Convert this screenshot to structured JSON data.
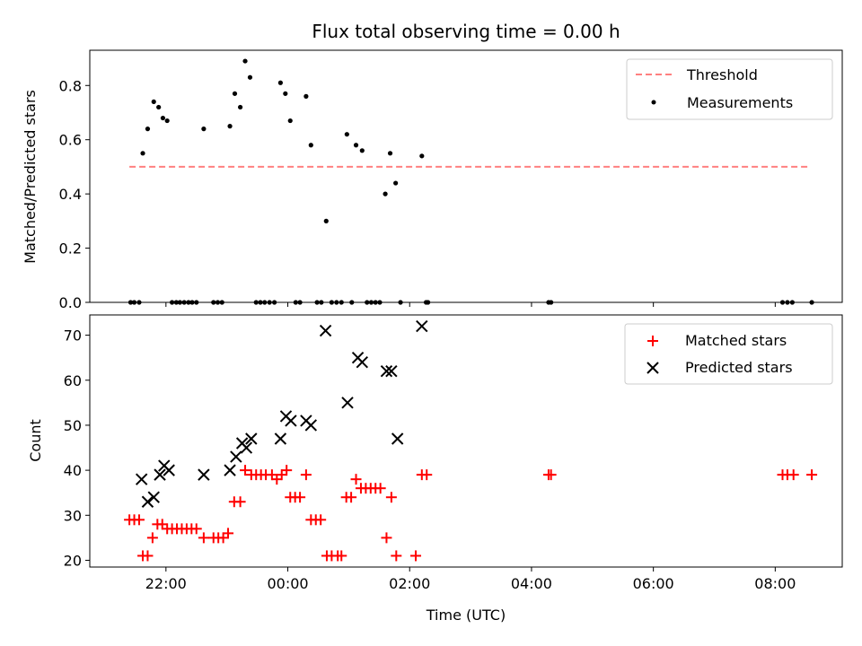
{
  "chart_data": {
    "type": "scatter",
    "title": "Flux total observing time = 0.00 h",
    "xlabel": "Time (UTC)",
    "x_unit": "hours since 00:00 UTC",
    "xlim": [
      -3.25,
      9.1
    ],
    "x_ticks": [
      {
        "value": -2,
        "label": "22:00"
      },
      {
        "value": 0,
        "label": "00:00"
      },
      {
        "value": 2,
        "label": "02:00"
      },
      {
        "value": 4,
        "label": "04:00"
      },
      {
        "value": 6,
        "label": "06:00"
      },
      {
        "value": 8,
        "label": "08:00"
      }
    ],
    "panels": [
      {
        "ylabel": "Matched/Predicted stars",
        "ylim": [
          0,
          0.93
        ],
        "yticks": [
          "0.0",
          "0.2",
          "0.4",
          "0.6",
          "0.8"
        ],
        "legend": {
          "position": "upper right"
        },
        "threshold": {
          "name": "Threshold",
          "y": 0.5,
          "x_range": [
            -2.6,
            8.55
          ],
          "color": "#ff8080",
          "style": "dashed"
        },
        "series": [
          {
            "name": "Measurements",
            "marker": "dot",
            "color": "#000000",
            "points": [
              [
                -2.58,
                0.0
              ],
              [
                -2.52,
                0.0
              ],
              [
                -2.44,
                0.0
              ],
              [
                -2.38,
                0.55
              ],
              [
                -2.3,
                0.64
              ],
              [
                -2.2,
                0.74
              ],
              [
                -2.12,
                0.72
              ],
              [
                -2.05,
                0.68
              ],
              [
                -1.98,
                0.67
              ],
              [
                -1.9,
                0.0
              ],
              [
                -1.83,
                0.0
              ],
              [
                -1.77,
                0.0
              ],
              [
                -1.7,
                0.0
              ],
              [
                -1.63,
                0.0
              ],
              [
                -1.57,
                0.0
              ],
              [
                -1.5,
                0.0
              ],
              [
                -1.38,
                0.64
              ],
              [
                -1.22,
                0.0
              ],
              [
                -1.15,
                0.0
              ],
              [
                -1.08,
                0.0
              ],
              [
                -0.95,
                0.65
              ],
              [
                -0.87,
                0.77
              ],
              [
                -0.78,
                0.72
              ],
              [
                -0.7,
                0.89
              ],
              [
                -0.62,
                0.83
              ],
              [
                -0.52,
                0.0
              ],
              [
                -0.45,
                0.0
              ],
              [
                -0.38,
                0.0
              ],
              [
                -0.3,
                0.0
              ],
              [
                -0.22,
                0.0
              ],
              [
                -0.12,
                0.81
              ],
              [
                -0.04,
                0.77
              ],
              [
                0.04,
                0.67
              ],
              [
                0.13,
                0.0
              ],
              [
                0.2,
                0.0
              ],
              [
                0.3,
                0.76
              ],
              [
                0.38,
                0.58
              ],
              [
                0.48,
                0.0
              ],
              [
                0.55,
                0.0
              ],
              [
                0.63,
                0.3
              ],
              [
                0.72,
                0.0
              ],
              [
                0.8,
                0.0
              ],
              [
                0.88,
                0.0
              ],
              [
                0.97,
                0.62
              ],
              [
                1.05,
                0.0
              ],
              [
                1.12,
                0.58
              ],
              [
                1.22,
                0.56
              ],
              [
                1.3,
                0.0
              ],
              [
                1.37,
                0.0
              ],
              [
                1.44,
                0.0
              ],
              [
                1.51,
                0.0
              ],
              [
                1.6,
                0.4
              ],
              [
                1.68,
                0.55
              ],
              [
                1.77,
                0.44
              ],
              [
                1.85,
                0.0
              ],
              [
                2.2,
                0.54
              ],
              [
                2.27,
                0.0
              ],
              [
                2.3,
                0.0
              ],
              [
                4.28,
                0.0
              ],
              [
                4.32,
                0.0
              ],
              [
                8.12,
                0.0
              ],
              [
                8.2,
                0.0
              ],
              [
                8.28,
                0.0
              ],
              [
                8.6,
                0.0
              ]
            ]
          }
        ]
      },
      {
        "ylabel": "Count",
        "ylim": [
          18.5,
          74.5
        ],
        "yticks": [
          "20",
          "30",
          "40",
          "50",
          "60",
          "70"
        ],
        "legend": {
          "position": "upper right"
        },
        "series": [
          {
            "name": "Matched stars",
            "marker": "plus",
            "color": "#ff0000",
            "points": [
              [
                -2.6,
                29
              ],
              [
                -2.52,
                29
              ],
              [
                -2.44,
                29
              ],
              [
                -2.38,
                21
              ],
              [
                -2.3,
                21
              ],
              [
                -2.22,
                25
              ],
              [
                -2.14,
                28
              ],
              [
                -2.06,
                28
              ],
              [
                -1.98,
                27
              ],
              [
                -1.9,
                27
              ],
              [
                -1.82,
                27
              ],
              [
                -1.74,
                27
              ],
              [
                -1.66,
                27
              ],
              [
                -1.58,
                27
              ],
              [
                -1.5,
                27
              ],
              [
                -1.38,
                25
              ],
              [
                -1.22,
                25
              ],
              [
                -1.14,
                25
              ],
              [
                -1.06,
                25
              ],
              [
                -0.98,
                26
              ],
              [
                -0.88,
                33
              ],
              [
                -0.78,
                33
              ],
              [
                -0.7,
                40
              ],
              [
                -0.6,
                39
              ],
              [
                -0.52,
                39
              ],
              [
                -0.44,
                39
              ],
              [
                -0.36,
                39
              ],
              [
                -0.26,
                39
              ],
              [
                -0.18,
                38
              ],
              [
                -0.1,
                39
              ],
              [
                -0.02,
                40
              ],
              [
                0.04,
                34
              ],
              [
                0.12,
                34
              ],
              [
                0.2,
                34
              ],
              [
                0.3,
                39
              ],
              [
                0.38,
                29
              ],
              [
                0.46,
                29
              ],
              [
                0.54,
                29
              ],
              [
                0.64,
                21
              ],
              [
                0.72,
                21
              ],
              [
                0.82,
                21
              ],
              [
                0.88,
                21
              ],
              [
                0.96,
                34
              ],
              [
                1.04,
                34
              ],
              [
                1.12,
                38
              ],
              [
                1.2,
                36
              ],
              [
                1.28,
                36
              ],
              [
                1.36,
                36
              ],
              [
                1.44,
                36
              ],
              [
                1.52,
                36
              ],
              [
                1.62,
                25
              ],
              [
                1.7,
                34
              ],
              [
                1.78,
                21
              ],
              [
                2.1,
                21
              ],
              [
                2.2,
                39
              ],
              [
                2.28,
                39
              ],
              [
                4.28,
                39
              ],
              [
                4.32,
                39
              ],
              [
                8.12,
                39
              ],
              [
                8.2,
                39
              ],
              [
                8.3,
                39
              ],
              [
                8.6,
                39
              ]
            ]
          },
          {
            "name": "Predicted stars",
            "marker": "x",
            "color": "#000000",
            "points": [
              [
                -2.4,
                38
              ],
              [
                -2.3,
                33
              ],
              [
                -2.2,
                34
              ],
              [
                -2.1,
                39
              ],
              [
                -2.03,
                41
              ],
              [
                -1.95,
                40
              ],
              [
                -1.38,
                39
              ],
              [
                -0.95,
                40
              ],
              [
                -0.85,
                43
              ],
              [
                -0.75,
                46
              ],
              [
                -0.68,
                45
              ],
              [
                -0.6,
                47
              ],
              [
                -0.12,
                47
              ],
              [
                -0.03,
                52
              ],
              [
                0.05,
                51
              ],
              [
                0.3,
                51
              ],
              [
                0.38,
                50
              ],
              [
                0.62,
                71
              ],
              [
                0.98,
                55
              ],
              [
                1.15,
                65
              ],
              [
                1.22,
                64
              ],
              [
                1.62,
                62
              ],
              [
                1.7,
                62
              ],
              [
                1.8,
                47
              ],
              [
                2.2,
                72
              ]
            ]
          }
        ]
      }
    ]
  }
}
